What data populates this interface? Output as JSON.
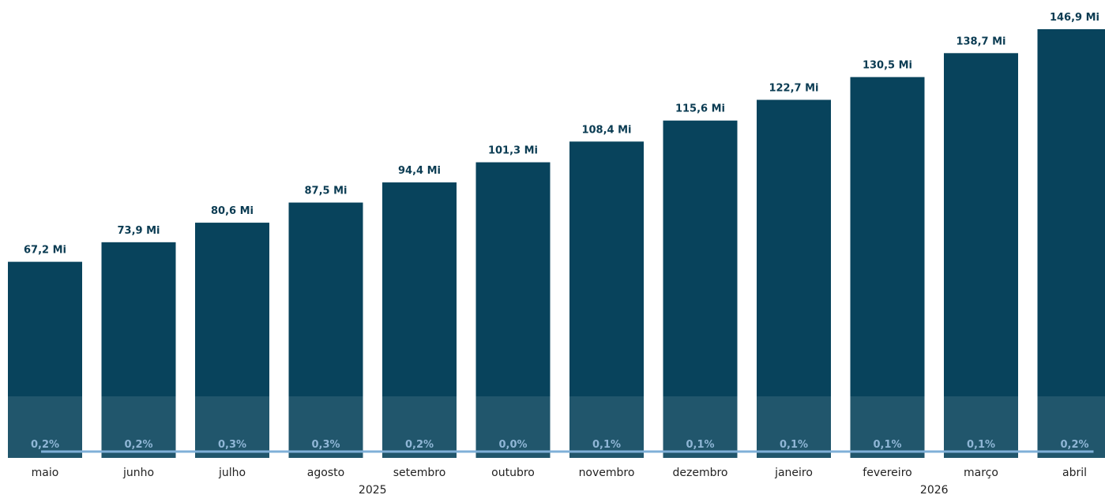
{
  "chart_data": {
    "type": "bar",
    "categories": [
      "maio",
      "junho",
      "julho",
      "agosto",
      "setembro",
      "outubro",
      "novembro",
      "dezembro",
      "janeiro",
      "fevereiro",
      "março",
      "abril"
    ],
    "years": [
      "2025",
      "2026"
    ],
    "series": [
      {
        "values": [
          67.2,
          73.9,
          80.6,
          87.5,
          94.4,
          101.3,
          108.4,
          115.6,
          122.7,
          130.5,
          138.7,
          146.9
        ],
        "labels": [
          "67,2 Mi",
          "73,9 Mi",
          "80,6 Mi",
          "87,5 Mi",
          "94,4 Mi",
          "101,3 Mi",
          "108,4 Mi",
          "115,6 Mi",
          "122,7 Mi",
          "130,5 Mi",
          "138,7 Mi",
          "146,9 Mi"
        ],
        "color": "#08435c"
      },
      {
        "type": "line",
        "values": [
          0.2,
          0.2,
          0.3,
          0.3,
          0.2,
          0.0,
          0.1,
          0.1,
          0.1,
          0.1,
          0.1,
          0.2
        ],
        "labels": [
          "0,2%",
          "0,2%",
          "0,3%",
          "0,3%",
          "0,2%",
          "0,0%",
          "0,1%",
          "0,1%",
          "0,1%",
          "0,1%",
          "0,1%",
          "0,2%"
        ],
        "color": "#7fb0d8"
      }
    ],
    "ylim": [
      0,
      146.9
    ],
    "grid": false,
    "legend": "none"
  }
}
